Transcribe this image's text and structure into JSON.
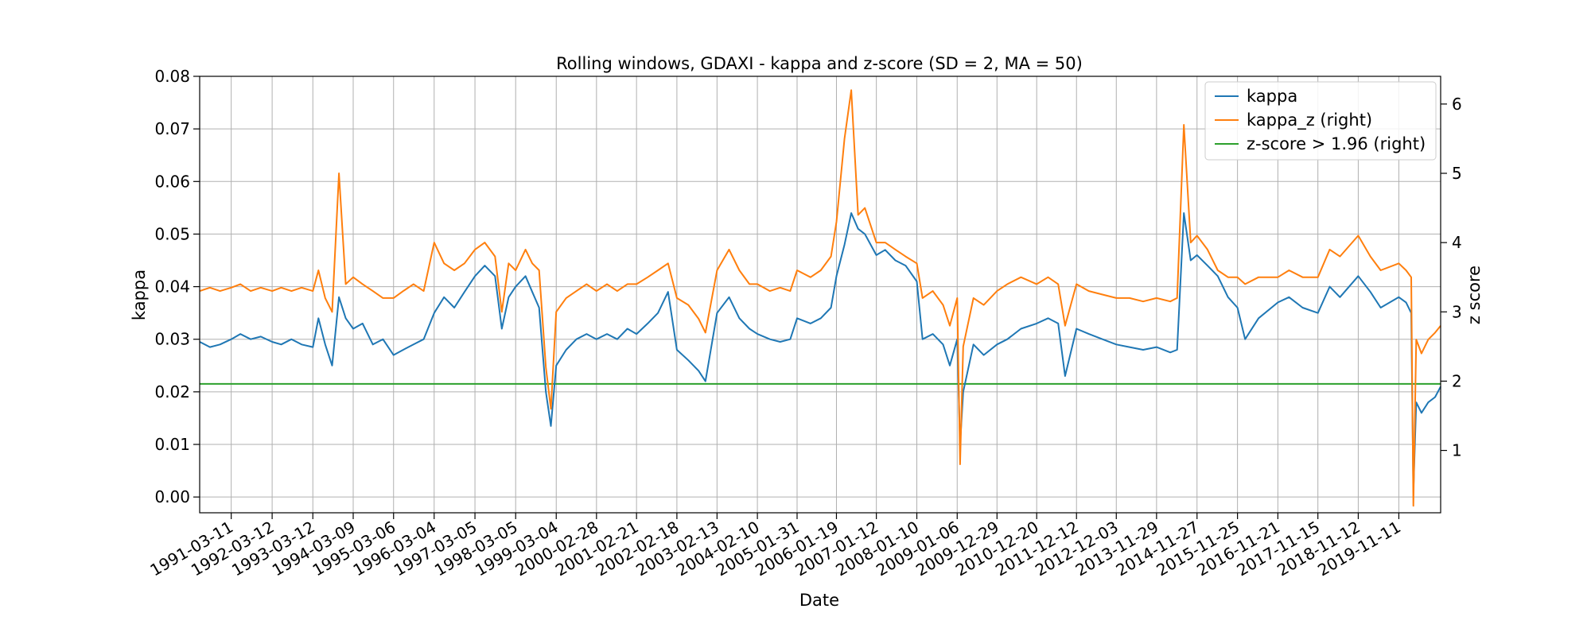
{
  "chart_data": {
    "type": "line",
    "title": "Rolling windows, GDAXI - kappa and z-score (SD = 2, MA = 50)",
    "xlabel": "Date",
    "ylabel": "kappa",
    "y2label": "z score",
    "x_range": [
      "1990-06-01",
      "2020-11-20"
    ],
    "ylim": [
      -0.003,
      0.08
    ],
    "y2lim": [
      0.1,
      6.4
    ],
    "grid": true,
    "legend_position": "upper right",
    "x_ticks": [
      "1991-03-11",
      "1992-03-12",
      "1993-03-12",
      "1994-03-09",
      "1995-03-06",
      "1996-03-04",
      "1997-03-05",
      "1998-03-05",
      "1999-03-04",
      "2000-02-28",
      "2001-02-21",
      "2002-02-18",
      "2003-02-13",
      "2004-02-10",
      "2005-01-31",
      "2006-01-19",
      "2007-01-12",
      "2008-01-10",
      "2009-01-06",
      "2009-12-29",
      "2010-12-20",
      "2011-12-12",
      "2012-12-03",
      "2013-11-29",
      "2014-11-27",
      "2015-11-25",
      "2016-11-21",
      "2017-11-15",
      "2018-11-12",
      "2019-11-11"
    ],
    "y_ticks": [
      "0.00",
      "0.01",
      "0.02",
      "0.03",
      "0.04",
      "0.05",
      "0.06",
      "0.07",
      "0.08"
    ],
    "y2_ticks": [
      "1",
      "2",
      "3",
      "4",
      "5",
      "6"
    ],
    "series": [
      {
        "name": "kappa",
        "axis": "left",
        "color": "#1f77b4",
        "points": [
          [
            "1990-06-01",
            0.0295
          ],
          [
            "1990-09-01",
            0.0285
          ],
          [
            "1990-12-01",
            0.029
          ],
          [
            "1991-03-11",
            0.03
          ],
          [
            "1991-06-01",
            0.031
          ],
          [
            "1991-09-01",
            0.03
          ],
          [
            "1991-12-01",
            0.0305
          ],
          [
            "1992-03-12",
            0.0295
          ],
          [
            "1992-06-01",
            0.029
          ],
          [
            "1992-09-01",
            0.03
          ],
          [
            "1992-12-01",
            0.029
          ],
          [
            "1993-03-12",
            0.0285
          ],
          [
            "1993-05-01",
            0.034
          ],
          [
            "1993-07-01",
            0.029
          ],
          [
            "1993-09-01",
            0.025
          ],
          [
            "1993-11-01",
            0.038
          ],
          [
            "1994-01-01",
            0.034
          ],
          [
            "1994-03-09",
            0.032
          ],
          [
            "1994-06-01",
            0.033
          ],
          [
            "1994-09-01",
            0.029
          ],
          [
            "1994-12-01",
            0.03
          ],
          [
            "1995-03-06",
            0.027
          ],
          [
            "1995-06-01",
            0.028
          ],
          [
            "1995-09-01",
            0.029
          ],
          [
            "1995-12-01",
            0.03
          ],
          [
            "1996-03-04",
            0.035
          ],
          [
            "1996-06-01",
            0.038
          ],
          [
            "1996-09-01",
            0.036
          ],
          [
            "1996-12-01",
            0.039
          ],
          [
            "1997-03-05",
            0.042
          ],
          [
            "1997-06-01",
            0.044
          ],
          [
            "1997-09-01",
            0.042
          ],
          [
            "1997-11-01",
            0.032
          ],
          [
            "1998-01-01",
            0.038
          ],
          [
            "1998-03-05",
            0.04
          ],
          [
            "1998-06-01",
            0.042
          ],
          [
            "1998-08-01",
            0.039
          ],
          [
            "1998-10-01",
            0.036
          ],
          [
            "1998-12-01",
            0.02
          ],
          [
            "1999-01-15",
            0.0135
          ],
          [
            "1999-03-04",
            0.025
          ],
          [
            "1999-06-01",
            0.028
          ],
          [
            "1999-09-01",
            0.03
          ],
          [
            "1999-12-01",
            0.031
          ],
          [
            "2000-02-28",
            0.03
          ],
          [
            "2000-06-01",
            0.031
          ],
          [
            "2000-09-01",
            0.03
          ],
          [
            "2000-12-01",
            0.032
          ],
          [
            "2001-02-21",
            0.031
          ],
          [
            "2001-06-01",
            0.033
          ],
          [
            "2001-09-01",
            0.035
          ],
          [
            "2001-12-01",
            0.039
          ],
          [
            "2002-02-18",
            0.028
          ],
          [
            "2002-06-01",
            0.026
          ],
          [
            "2002-09-01",
            0.024
          ],
          [
            "2002-11-01",
            0.022
          ],
          [
            "2003-02-13",
            0.035
          ],
          [
            "2003-06-01",
            0.038
          ],
          [
            "2003-09-01",
            0.034
          ],
          [
            "2003-12-01",
            0.032
          ],
          [
            "2004-02-10",
            0.031
          ],
          [
            "2004-06-01",
            0.03
          ],
          [
            "2004-09-01",
            0.0295
          ],
          [
            "2004-12-01",
            0.03
          ],
          [
            "2005-01-31",
            0.034
          ],
          [
            "2005-06-01",
            0.033
          ],
          [
            "2005-09-01",
            0.034
          ],
          [
            "2005-12-01",
            0.036
          ],
          [
            "2006-01-19",
            0.042
          ],
          [
            "2006-04-01",
            0.048
          ],
          [
            "2006-06-01",
            0.054
          ],
          [
            "2006-08-01",
            0.051
          ],
          [
            "2006-10-01",
            0.05
          ],
          [
            "2007-01-12",
            0.046
          ],
          [
            "2007-04-01",
            0.047
          ],
          [
            "2007-07-01",
            0.045
          ],
          [
            "2007-10-01",
            0.044
          ],
          [
            "2008-01-10",
            0.041
          ],
          [
            "2008-03-01",
            0.03
          ],
          [
            "2008-06-01",
            0.031
          ],
          [
            "2008-09-01",
            0.029
          ],
          [
            "2008-11-01",
            0.025
          ],
          [
            "2009-01-06",
            0.03
          ],
          [
            "2009-02-01",
            0.01
          ],
          [
            "2009-03-01",
            0.02
          ],
          [
            "2009-06-01",
            0.029
          ],
          [
            "2009-09-01",
            0.027
          ],
          [
            "2009-12-29",
            0.029
          ],
          [
            "2010-04-01",
            0.03
          ],
          [
            "2010-08-01",
            0.032
          ],
          [
            "2010-12-20",
            0.033
          ],
          [
            "2011-04-01",
            0.034
          ],
          [
            "2011-07-01",
            0.033
          ],
          [
            "2011-09-01",
            0.023
          ],
          [
            "2011-12-12",
            0.032
          ],
          [
            "2012-04-01",
            0.031
          ],
          [
            "2012-08-01",
            0.03
          ],
          [
            "2012-12-03",
            0.029
          ],
          [
            "2013-04-01",
            0.0285
          ],
          [
            "2013-08-01",
            0.028
          ],
          [
            "2013-11-29",
            0.0285
          ],
          [
            "2014-04-01",
            0.0275
          ],
          [
            "2014-06-01",
            0.028
          ],
          [
            "2014-08-01",
            0.054
          ],
          [
            "2014-10-01",
            0.045
          ],
          [
            "2014-11-27",
            0.046
          ],
          [
            "2015-03-01",
            0.044
          ],
          [
            "2015-06-01",
            0.042
          ],
          [
            "2015-09-01",
            0.038
          ],
          [
            "2015-11-25",
            0.036
          ],
          [
            "2016-02-01",
            0.03
          ],
          [
            "2016-06-01",
            0.034
          ],
          [
            "2016-11-21",
            0.037
          ],
          [
            "2017-03-01",
            0.038
          ],
          [
            "2017-07-01",
            0.036
          ],
          [
            "2017-11-15",
            0.035
          ],
          [
            "2018-03-01",
            0.04
          ],
          [
            "2018-06-01",
            0.038
          ],
          [
            "2018-11-12",
            0.042
          ],
          [
            "2019-03-01",
            0.039
          ],
          [
            "2019-06-01",
            0.036
          ],
          [
            "2019-11-11",
            0.038
          ],
          [
            "2020-01-15",
            0.037
          ],
          [
            "2020-03-01",
            0.035
          ],
          [
            "2020-03-20",
            0.001
          ],
          [
            "2020-04-15",
            0.018
          ],
          [
            "2020-06-01",
            0.016
          ],
          [
            "2020-08-01",
            0.018
          ],
          [
            "2020-10-01",
            0.019
          ],
          [
            "2020-11-20",
            0.021
          ]
        ]
      },
      {
        "name": "kappa_z (right)",
        "axis": "right",
        "color": "#ff7f0e",
        "points": [
          [
            "1990-06-01",
            3.3
          ],
          [
            "1990-09-01",
            3.35
          ],
          [
            "1990-12-01",
            3.3
          ],
          [
            "1991-03-11",
            3.35
          ],
          [
            "1991-06-01",
            3.4
          ],
          [
            "1991-09-01",
            3.3
          ],
          [
            "1991-12-01",
            3.35
          ],
          [
            "1992-03-12",
            3.3
          ],
          [
            "1992-06-01",
            3.35
          ],
          [
            "1992-09-01",
            3.3
          ],
          [
            "1992-12-01",
            3.35
          ],
          [
            "1993-03-12",
            3.3
          ],
          [
            "1993-05-01",
            3.6
          ],
          [
            "1993-07-01",
            3.2
          ],
          [
            "1993-09-01",
            3.0
          ],
          [
            "1993-11-01",
            5.0
          ],
          [
            "1994-01-01",
            3.4
          ],
          [
            "1994-03-09",
            3.5
          ],
          [
            "1994-06-01",
            3.4
          ],
          [
            "1994-09-01",
            3.3
          ],
          [
            "1994-12-01",
            3.2
          ],
          [
            "1995-03-06",
            3.2
          ],
          [
            "1995-06-01",
            3.3
          ],
          [
            "1995-09-01",
            3.4
          ],
          [
            "1995-12-01",
            3.3
          ],
          [
            "1996-03-04",
            4.0
          ],
          [
            "1996-06-01",
            3.7
          ],
          [
            "1996-09-01",
            3.6
          ],
          [
            "1996-12-01",
            3.7
          ],
          [
            "1997-03-05",
            3.9
          ],
          [
            "1997-06-01",
            4.0
          ],
          [
            "1997-09-01",
            3.8
          ],
          [
            "1997-11-01",
            3.0
          ],
          [
            "1998-01-01",
            3.7
          ],
          [
            "1998-03-05",
            3.6
          ],
          [
            "1998-06-01",
            3.9
          ],
          [
            "1998-08-01",
            3.7
          ],
          [
            "1998-10-01",
            3.6
          ],
          [
            "1998-12-01",
            2.2
          ],
          [
            "1999-01-15",
            1.6
          ],
          [
            "1999-03-04",
            3.0
          ],
          [
            "1999-06-01",
            3.2
          ],
          [
            "1999-09-01",
            3.3
          ],
          [
            "1999-12-01",
            3.4
          ],
          [
            "2000-02-28",
            3.3
          ],
          [
            "2000-06-01",
            3.4
          ],
          [
            "2000-09-01",
            3.3
          ],
          [
            "2000-12-01",
            3.4
          ],
          [
            "2001-02-21",
            3.4
          ],
          [
            "2001-06-01",
            3.5
          ],
          [
            "2001-09-01",
            3.6
          ],
          [
            "2001-12-01",
            3.7
          ],
          [
            "2002-02-18",
            3.2
          ],
          [
            "2002-06-01",
            3.1
          ],
          [
            "2002-09-01",
            2.9
          ],
          [
            "2002-11-01",
            2.7
          ],
          [
            "2003-02-13",
            3.6
          ],
          [
            "2003-06-01",
            3.9
          ],
          [
            "2003-09-01",
            3.6
          ],
          [
            "2003-12-01",
            3.4
          ],
          [
            "2004-02-10",
            3.4
          ],
          [
            "2004-06-01",
            3.3
          ],
          [
            "2004-09-01",
            3.35
          ],
          [
            "2004-12-01",
            3.3
          ],
          [
            "2005-01-31",
            3.6
          ],
          [
            "2005-06-01",
            3.5
          ],
          [
            "2005-09-01",
            3.6
          ],
          [
            "2005-12-01",
            3.8
          ],
          [
            "2006-01-19",
            4.3
          ],
          [
            "2006-04-01",
            5.5
          ],
          [
            "2006-06-01",
            6.2
          ],
          [
            "2006-08-01",
            4.4
          ],
          [
            "2006-10-01",
            4.5
          ],
          [
            "2007-01-12",
            4.0
          ],
          [
            "2007-04-01",
            4.0
          ],
          [
            "2007-07-01",
            3.9
          ],
          [
            "2007-10-01",
            3.8
          ],
          [
            "2008-01-10",
            3.7
          ],
          [
            "2008-03-01",
            3.2
          ],
          [
            "2008-06-01",
            3.3
          ],
          [
            "2008-09-01",
            3.1
          ],
          [
            "2008-11-01",
            2.8
          ],
          [
            "2009-01-06",
            3.2
          ],
          [
            "2009-02-01",
            0.8
          ],
          [
            "2009-03-01",
            2.5
          ],
          [
            "2009-06-01",
            3.2
          ],
          [
            "2009-09-01",
            3.1
          ],
          [
            "2009-12-29",
            3.3
          ],
          [
            "2010-04-01",
            3.4
          ],
          [
            "2010-08-01",
            3.5
          ],
          [
            "2010-12-20",
            3.4
          ],
          [
            "2011-04-01",
            3.5
          ],
          [
            "2011-07-01",
            3.4
          ],
          [
            "2011-09-01",
            2.8
          ],
          [
            "2011-12-12",
            3.4
          ],
          [
            "2012-04-01",
            3.3
          ],
          [
            "2012-08-01",
            3.25
          ],
          [
            "2012-12-03",
            3.2
          ],
          [
            "2013-04-01",
            3.2
          ],
          [
            "2013-08-01",
            3.15
          ],
          [
            "2013-11-29",
            3.2
          ],
          [
            "2014-04-01",
            3.15
          ],
          [
            "2014-06-01",
            3.2
          ],
          [
            "2014-08-01",
            5.7
          ],
          [
            "2014-10-01",
            4.0
          ],
          [
            "2014-11-27",
            4.1
          ],
          [
            "2015-03-01",
            3.9
          ],
          [
            "2015-06-01",
            3.6
          ],
          [
            "2015-09-01",
            3.5
          ],
          [
            "2015-11-25",
            3.5
          ],
          [
            "2016-02-01",
            3.4
          ],
          [
            "2016-06-01",
            3.5
          ],
          [
            "2016-11-21",
            3.5
          ],
          [
            "2017-03-01",
            3.6
          ],
          [
            "2017-07-01",
            3.5
          ],
          [
            "2017-11-15",
            3.5
          ],
          [
            "2018-03-01",
            3.9
          ],
          [
            "2018-06-01",
            3.8
          ],
          [
            "2018-11-12",
            4.1
          ],
          [
            "2019-03-01",
            3.8
          ],
          [
            "2019-06-01",
            3.6
          ],
          [
            "2019-11-11",
            3.7
          ],
          [
            "2020-01-15",
            3.6
          ],
          [
            "2020-03-01",
            3.5
          ],
          [
            "2020-03-20",
            0.2
          ],
          [
            "2020-04-15",
            2.6
          ],
          [
            "2020-06-01",
            2.4
          ],
          [
            "2020-08-01",
            2.6
          ],
          [
            "2020-10-01",
            2.7
          ],
          [
            "2020-11-20",
            2.8
          ]
        ]
      },
      {
        "name": "z-score > 1.96 (right)",
        "axis": "right",
        "color": "#2ca02c",
        "points": [
          [
            "1990-06-01",
            1.96
          ],
          [
            "2020-11-20",
            1.96
          ]
        ]
      }
    ]
  }
}
